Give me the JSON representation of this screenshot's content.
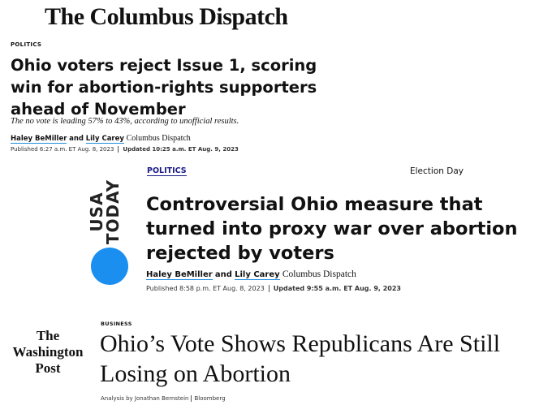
{
  "articles": [
    {
      "masthead": "The Columbus Dispatch",
      "section": "POLITICS",
      "headline": "Ohio voters reject Issue 1, scoring win for abortion-rights supporters ahead of November",
      "subhead": "The no vote is leading 57% to 43%, according to unofficial results.",
      "authors": [
        "Haley BeMiller",
        "Lily Carey"
      ],
      "conjunction": "and",
      "affiliation": "Columbus Dispatch",
      "published": "Published 6:27 a.m. ET Aug. 8, 2023",
      "updated": "Updated 10:25 a.m. ET Aug. 9, 2023"
    },
    {
      "masthead": "USA TODAY",
      "section": "POLITICS",
      "tag": "Election Day",
      "headline": "Controversial Ohio measure that turned into proxy war over abortion rejected by voters",
      "authors": [
        "Haley BeMiller",
        "Lily Carey"
      ],
      "conjunction": "and",
      "affiliation": "Columbus Dispatch",
      "published": "Published 8:58 p.m. ET Aug. 8, 2023",
      "updated": "Updated 9:55 a.m. ET Aug. 9, 2023"
    },
    {
      "masthead": [
        "The",
        "Washington",
        "Post"
      ],
      "section": "BUSINESS",
      "headline": "Ohio’s Vote Shows Republicans Are Still Losing on Abortion",
      "byline": "Analysis by Jonathan Bernstein",
      "source": "Bloomberg"
    }
  ]
}
